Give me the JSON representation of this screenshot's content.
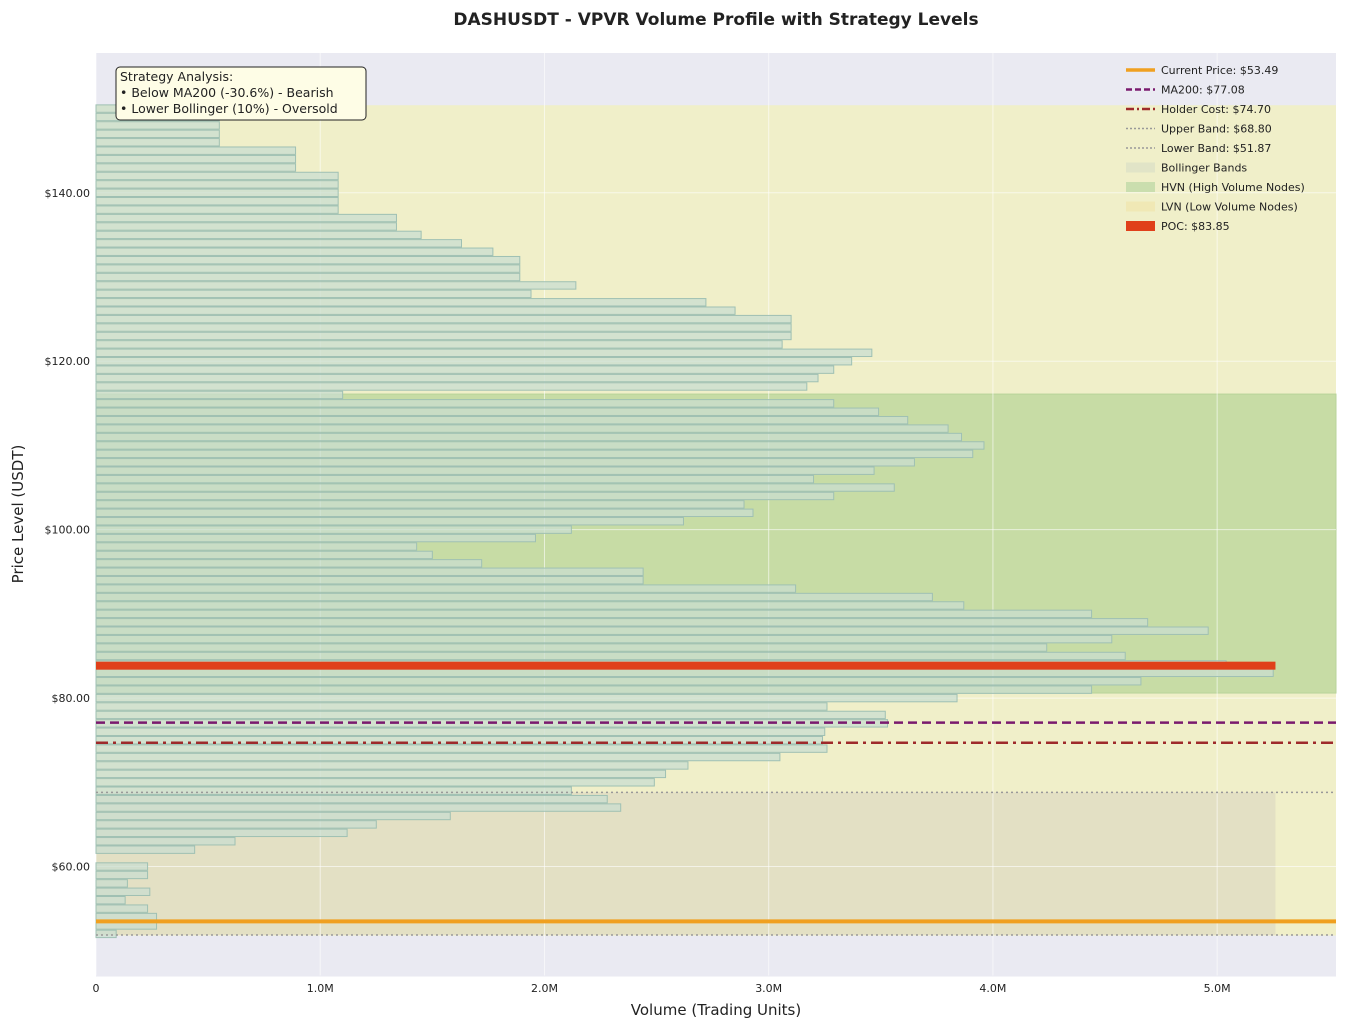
{
  "chart_data": {
    "type": "bar",
    "orientation": "horizontal",
    "title": "DASHUSDT - VPVR Volume Profile with Strategy Levels",
    "xlabel": "Volume (Trading Units)",
    "ylabel": "Price Level (USDT)",
    "xlim": [
      0,
      5530000
    ],
    "ylim": [
      47,
      156.6
    ],
    "x_ticks": [
      {
        "value": 0,
        "label": "0"
      },
      {
        "value": 1000000,
        "label": "1.0M"
      },
      {
        "value": 2000000,
        "label": "2.0M"
      },
      {
        "value": 3000000,
        "label": "3.0M"
      },
      {
        "value": 4000000,
        "label": "4.0M"
      },
      {
        "value": 5000000,
        "label": "5.0M"
      }
    ],
    "y_ticks": [
      {
        "value": 60,
        "label": "$60.00"
      },
      {
        "value": 80,
        "label": "$80.00"
      },
      {
        "value": 100,
        "label": "$100.00"
      },
      {
        "value": 120,
        "label": "$120.00"
      },
      {
        "value": 140,
        "label": "$140.00"
      }
    ],
    "grid": true,
    "legend_position": "top-right",
    "bin_size": 1.0,
    "price_levels": [
      52,
      53,
      54,
      55,
      56,
      57,
      58,
      59,
      60,
      61,
      62,
      63,
      64,
      65,
      66,
      67,
      68,
      69,
      70,
      71,
      72,
      73,
      74,
      75,
      76,
      77,
      78,
      79,
      80,
      81,
      82,
      83,
      84,
      85,
      86,
      87,
      88,
      89,
      90,
      91,
      92,
      93,
      94,
      95,
      96,
      97,
      98,
      99,
      100,
      101,
      102,
      103,
      104,
      105,
      106,
      107,
      108,
      109,
      110,
      111,
      112,
      113,
      114,
      115,
      116,
      117,
      118,
      119,
      120,
      121,
      122,
      123,
      124,
      125,
      126,
      127,
      128,
      129,
      130,
      131,
      132,
      133,
      134,
      135,
      136,
      137,
      138,
      139,
      140,
      141,
      142,
      143,
      144,
      145,
      146,
      147,
      148,
      149,
      150
    ],
    "volumes": [
      90000,
      270000,
      270000,
      230000,
      130000,
      240000,
      140000,
      230000,
      230000,
      0,
      440000,
      620000,
      1120000,
      1250000,
      1580000,
      2340000,
      2280000,
      2120000,
      2490000,
      2540000,
      2640000,
      3050000,
      3260000,
      3240000,
      3250000,
      3530000,
      3520000,
      3260000,
      3840000,
      4440000,
      4660000,
      5250000,
      5040000,
      4590000,
      4240000,
      4530000,
      4960000,
      4690000,
      4440000,
      3870000,
      3730000,
      3120000,
      2440000,
      2440000,
      1720000,
      1500000,
      1430000,
      1960000,
      2120000,
      2620000,
      2930000,
      2890000,
      3290000,
      3560000,
      3200000,
      3470000,
      3650000,
      3910000,
      3960000,
      3860000,
      3800000,
      3620000,
      3490000,
      3290000,
      1100000,
      3170000,
      3220000,
      3290000,
      3370000,
      3460000,
      3060000,
      3100000,
      3100000,
      3100000,
      2850000,
      2720000,
      1940000,
      2140000,
      1890000,
      1890000,
      1890000,
      1770000,
      1630000,
      1450000,
      1340000,
      1340000,
      1080000,
      1080000,
      1080000,
      1080000,
      1080000,
      890000,
      890000,
      890000,
      550000,
      550000,
      550000,
      550000,
      550000
    ],
    "poc": {
      "price": 83.85,
      "volume": 5260000,
      "label": "POC: $83.85",
      "color": "#e0401a"
    },
    "hvn_range": [
      80.6,
      116.1
    ],
    "lvn_range": [
      51.8,
      150.4
    ],
    "bollinger": {
      "upper": 68.8,
      "lower": 51.87,
      "x_max": 5260000
    },
    "lines": [
      {
        "name": "current",
        "label": "Current Price: $53.49",
        "value": 53.49,
        "color": "#f0a020",
        "style": "solid"
      },
      {
        "name": "ma200",
        "label": "MA200: $77.08",
        "value": 77.08,
        "color": "#7a1a6e",
        "style": "dashed"
      },
      {
        "name": "holder-cost",
        "label": "Holder Cost: $74.70",
        "value": 74.7,
        "color": "#9e2a2b",
        "style": "dashdot"
      },
      {
        "name": "upper-band",
        "label": "Upper Band: $68.80",
        "value": 68.8,
        "color": "#999999",
        "style": "dotted"
      },
      {
        "name": "lower-band",
        "label": "Lower Band: $51.87",
        "value": 51.87,
        "color": "#999999",
        "style": "dotted"
      }
    ],
    "legend": [
      {
        "label": "Current Price: $53.49",
        "kind": "line",
        "color": "#f0a020",
        "style": "solid"
      },
      {
        "label": "MA200: $77.08",
        "kind": "line",
        "color": "#7a1a6e",
        "style": "dashed"
      },
      {
        "label": "Holder Cost: $74.70",
        "kind": "line",
        "color": "#9e2a2b",
        "style": "dashdot"
      },
      {
        "label": "Upper Band: $68.80",
        "kind": "line",
        "color": "#999999",
        "style": "dotted"
      },
      {
        "label": "Lower Band: $51.87",
        "kind": "line",
        "color": "#999999",
        "style": "dotted"
      },
      {
        "label": "Bollinger Bands",
        "kind": "patch",
        "color": "#dfe2c6"
      },
      {
        "label": "HVN (High Volume Nodes)",
        "kind": "patch",
        "color": "#c5dbab"
      },
      {
        "label": "LVN (Low Volume Nodes)",
        "kind": "patch",
        "color": "#efe7b3"
      },
      {
        "label": "POC: $83.85",
        "kind": "patch",
        "color": "#e0401a"
      }
    ],
    "annotation": {
      "lines": [
        "Strategy Analysis:",
        "• Below MA200 (-30.6%) - Bearish",
        "• Lower Bollinger (10%) - Oversold"
      ]
    },
    "colors": {
      "plot_background": "#eaeaf2",
      "bar_fill": "#c9ddd0",
      "bar_edge": "#9fc0b3",
      "hvn_fill": "#c7dca5",
      "lvn_fill": "#f0efc6",
      "bollinger_fill": "#e1ddc3"
    }
  }
}
